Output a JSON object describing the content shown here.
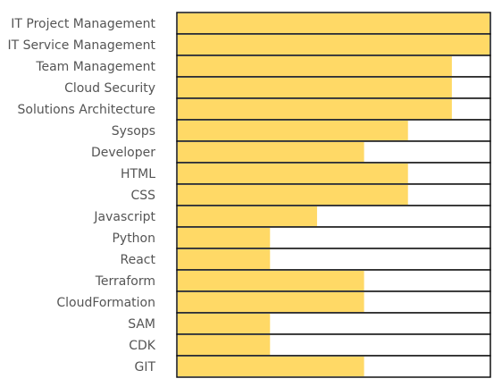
{
  "chart_data": {
    "type": "bar",
    "orientation": "horizontal",
    "title": "",
    "xlabel": "",
    "ylabel": "",
    "xlim": [
      0,
      100
    ],
    "grid": false,
    "legend": "none",
    "colors": {
      "fill": "#ffd966",
      "track": "#ffffff",
      "border": "#111111",
      "label": "#555555"
    },
    "categories": [
      "IT Project Management",
      "IT Service Management",
      "Team Management",
      "Cloud Security",
      "Solutions Architecture",
      "Sysops",
      "Developer",
      "HTML",
      "CSS",
      "Javascript",
      "Python",
      "React",
      "Terraform",
      "CloudFormation",
      "SAM",
      "CDK",
      "GIT"
    ],
    "values": [
      100,
      100,
      88,
      88,
      88,
      74,
      60,
      74,
      74,
      45,
      30,
      30,
      60,
      60,
      30,
      30,
      60
    ]
  }
}
